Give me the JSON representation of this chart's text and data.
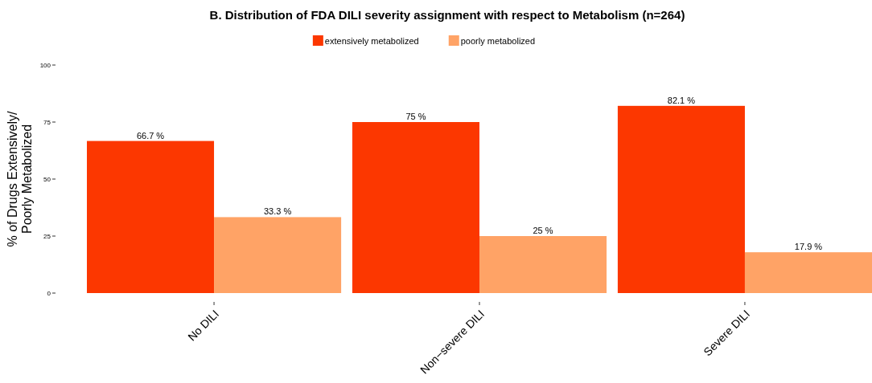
{
  "chart_data": {
    "type": "bar",
    "title": "B. Distribution of FDA DILI severity assignment with respect to Metabolism (n=264)",
    "ylabel": "% of Drugs Extensively/\nPoorly Metabolized",
    "categories": [
      "No DILI",
      "Non−severe DILI",
      "Severe DILI"
    ],
    "series": [
      {
        "name": "extensively metabolized",
        "color": "#fc3700",
        "values": [
          66.7,
          75,
          82.1
        ],
        "value_labels": [
          "66.7 %",
          "75 %",
          "82.1 %"
        ]
      },
      {
        "name": "poorly metabolized",
        "color": "#ffa366",
        "values": [
          33.3,
          25,
          17.9
        ],
        "value_labels": [
          "33.3 %",
          "25 %",
          "17.9 %"
        ]
      }
    ],
    "ylim": [
      0,
      100
    ],
    "yticks": [
      0,
      25,
      50,
      75,
      100
    ],
    "legend": "top",
    "grid": false
  }
}
